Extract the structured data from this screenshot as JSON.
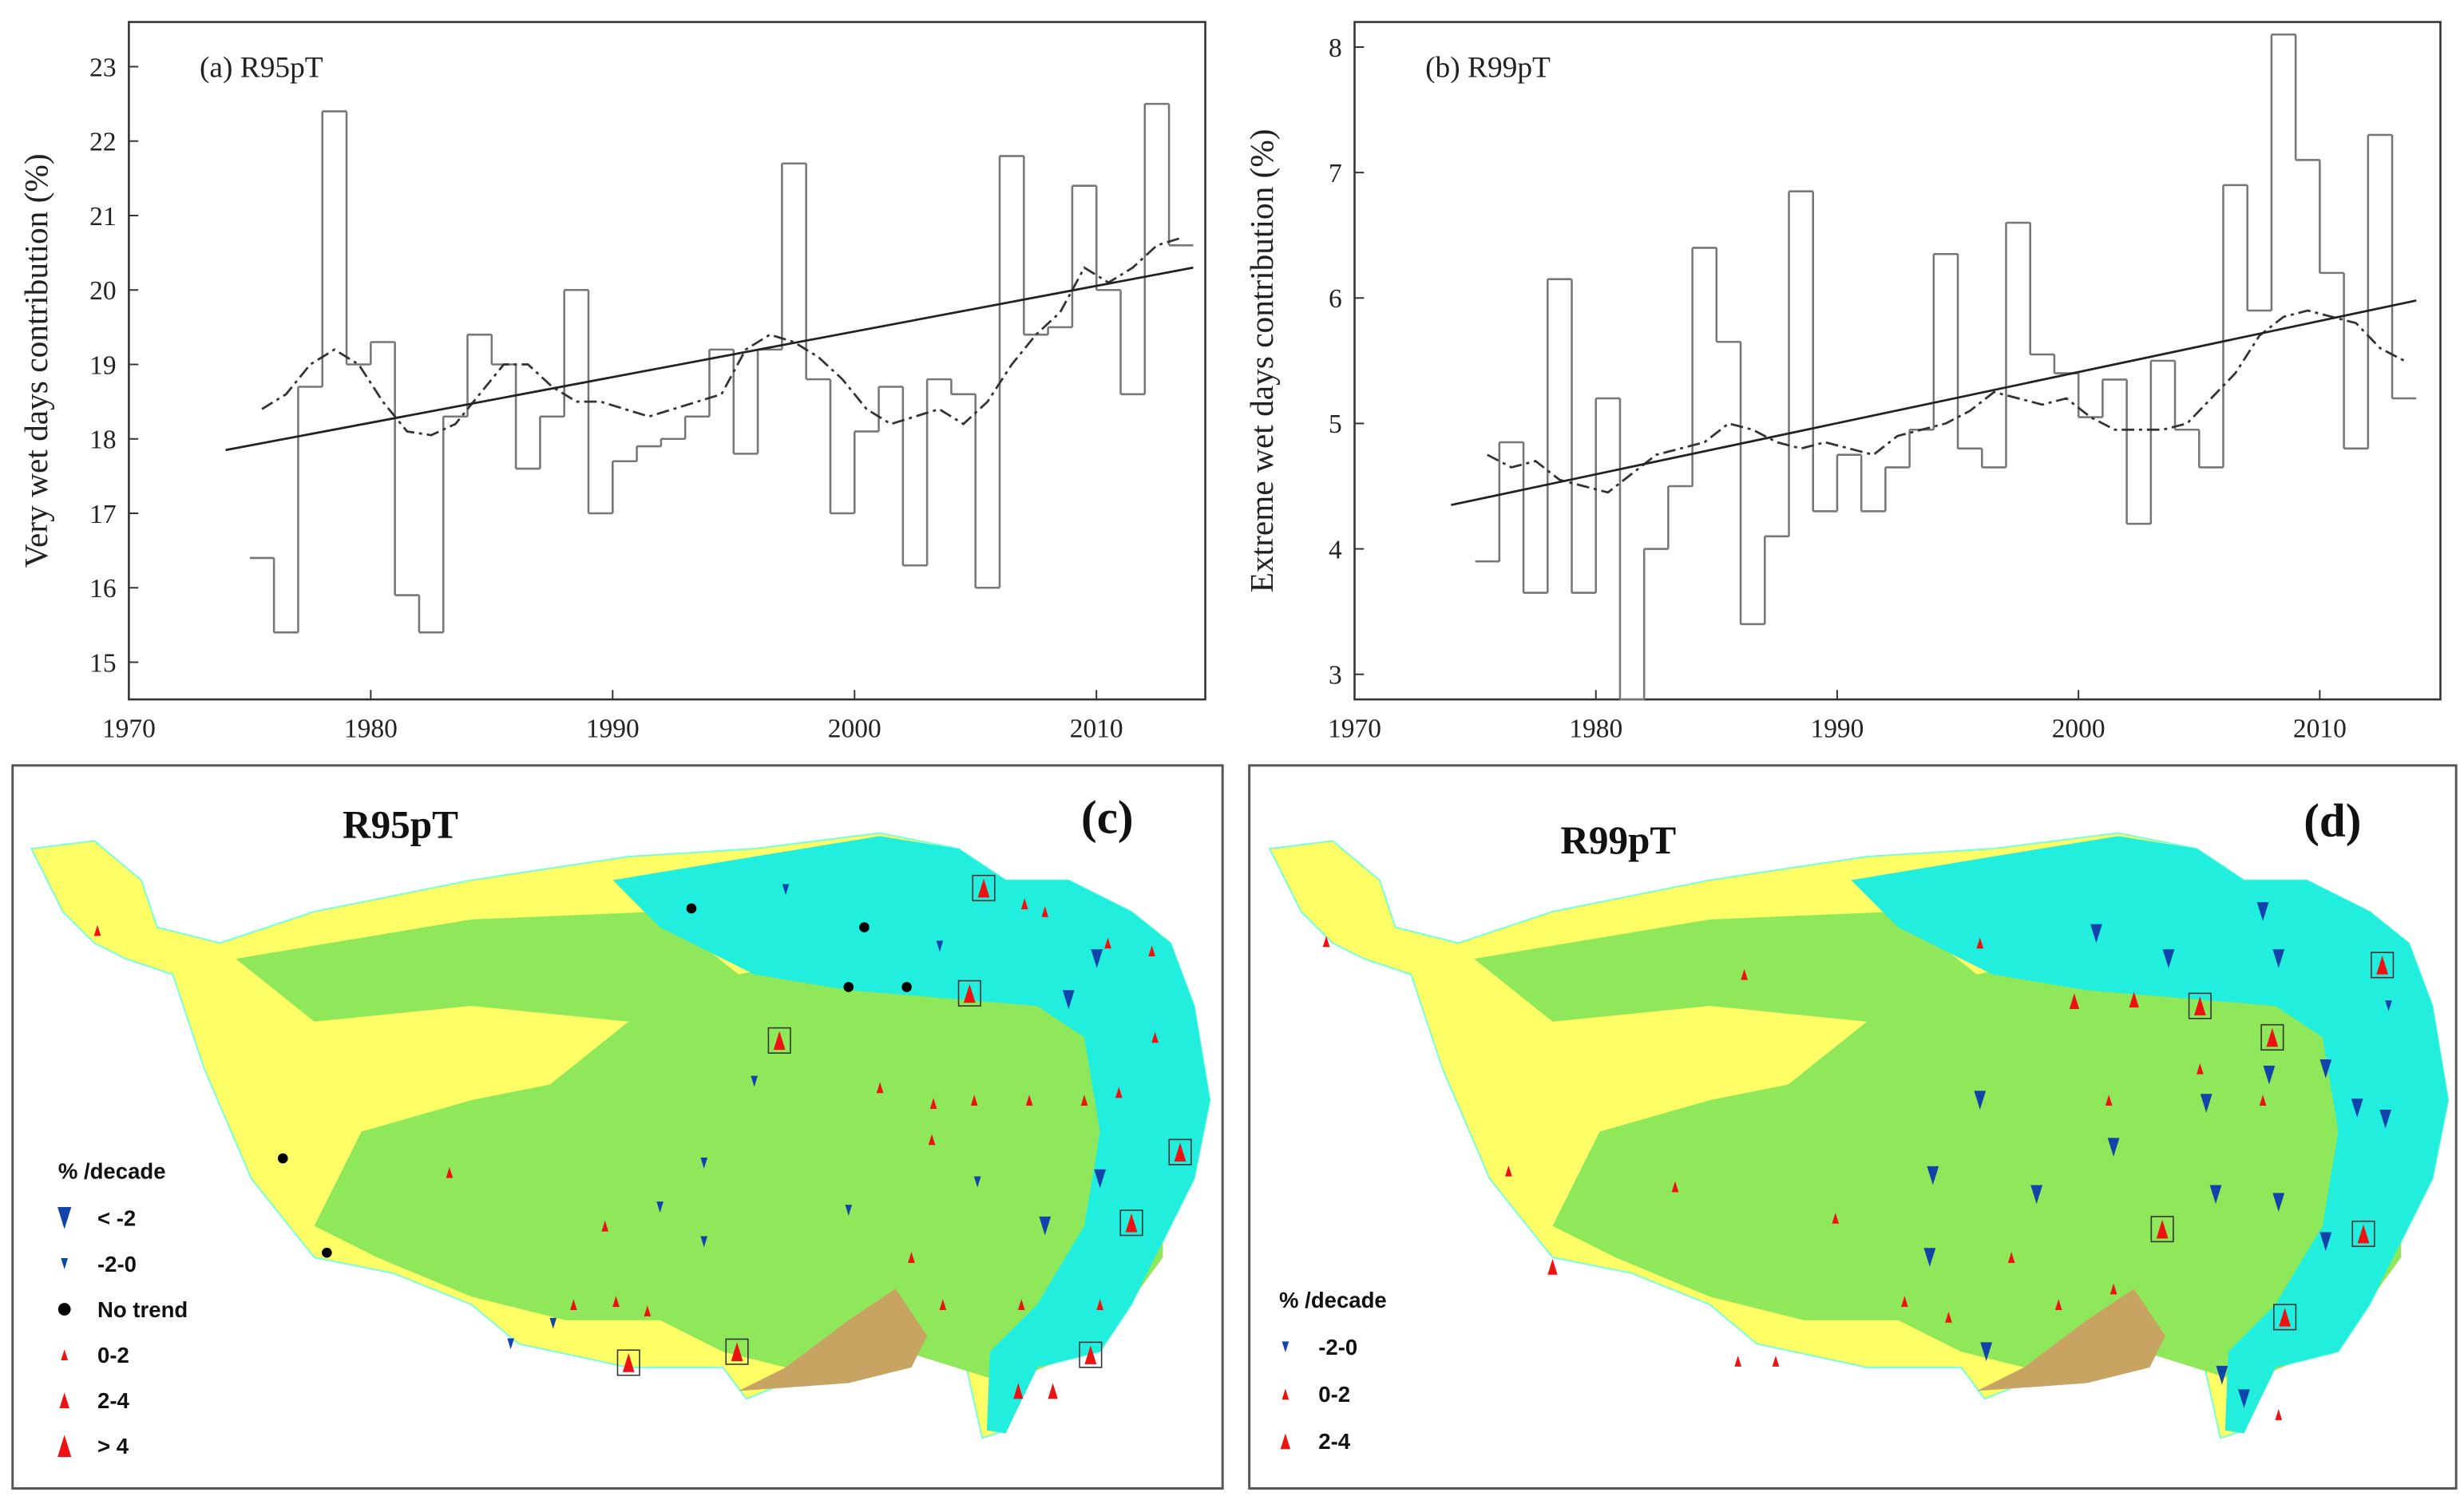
{
  "chart_data": [
    {
      "type": "step",
      "title": "(a) R95pT",
      "ylabel": "Very wet days contribution (%)",
      "x": [
        1975,
        1976,
        1977,
        1978,
        1979,
        1980,
        1981,
        1982,
        1983,
        1984,
        1985,
        1986,
        1987,
        1988,
        1989,
        1990,
        1991,
        1992,
        1993,
        1994,
        1995,
        1996,
        1997,
        1998,
        1999,
        2000,
        2001,
        2002,
        2003,
        2004,
        2005,
        2006,
        2007,
        2008,
        2009,
        2010,
        2011,
        2012,
        2013
      ],
      "series": [
        {
          "draw": "step",
          "color": "#777777",
          "values": [
            16.4,
            15.4,
            18.7,
            22.4,
            19.0,
            19.3,
            15.9,
            15.4,
            18.3,
            19.4,
            19.0,
            17.6,
            18.3,
            20.0,
            17.0,
            17.7,
            17.9,
            18.0,
            18.3,
            19.2,
            17.8,
            19.2,
            21.7,
            18.8,
            17.0,
            18.1,
            18.7,
            16.3,
            18.8,
            18.6,
            16.0,
            21.8,
            19.4,
            19.5,
            21.4,
            20.0,
            18.6,
            22.5,
            20.6
          ]
        },
        {
          "draw": "dashdot",
          "color": "#333333",
          "values": [
            18.4,
            18.6,
            19.0,
            19.2,
            19.0,
            18.5,
            18.1,
            18.05,
            18.2,
            18.6,
            19.0,
            19.0,
            18.7,
            18.5,
            18.5,
            18.4,
            18.3,
            18.4,
            18.5,
            18.6,
            19.2,
            19.4,
            19.3,
            19.1,
            18.8,
            18.4,
            18.2,
            18.3,
            18.4,
            18.2,
            18.5,
            19.0,
            19.4,
            19.7,
            20.3,
            20.1,
            20.3,
            20.6,
            20.7
          ]
        },
        {
          "draw": "line",
          "color": "#222222",
          "x": [
            1974,
            2014
          ],
          "values": [
            17.85,
            20.3
          ]
        }
      ],
      "xlim": [
        1970,
        2014.5
      ],
      "xticks": [
        1970,
        1980,
        1990,
        2000,
        2010
      ],
      "ylim": [
        14.5,
        23.6
      ],
      "yticks": [
        15,
        16,
        17,
        18,
        19,
        20,
        21,
        22,
        23
      ]
    },
    {
      "type": "step",
      "title": "(b) R99pT",
      "ylabel": "Extreme wet days contribution (%)",
      "x": [
        1975,
        1976,
        1977,
        1978,
        1979,
        1980,
        1981,
        1982,
        1983,
        1984,
        1985,
        1986,
        1987,
        1988,
        1989,
        1990,
        1991,
        1992,
        1993,
        1994,
        1995,
        1996,
        1997,
        1998,
        1999,
        2000,
        2001,
        2002,
        2003,
        2004,
        2005,
        2006,
        2007,
        2008,
        2009,
        2010,
        2011,
        2012,
        2013
      ],
      "series": [
        {
          "draw": "step",
          "color": "#777777",
          "values": [
            3.9,
            4.85,
            3.65,
            6.15,
            3.65,
            5.2,
            2.8,
            4.0,
            4.5,
            6.4,
            5.65,
            3.4,
            4.1,
            6.85,
            4.3,
            4.75,
            4.3,
            4.65,
            4.95,
            6.35,
            4.8,
            4.65,
            6.6,
            5.55,
            5.4,
            5.05,
            5.35,
            4.2,
            5.5,
            4.95,
            4.65,
            6.9,
            5.9,
            8.1,
            7.1,
            6.2,
            4.8,
            7.3,
            5.2
          ]
        },
        {
          "draw": "dashdot",
          "color": "#333333",
          "values": [
            4.75,
            4.65,
            4.7,
            4.55,
            4.5,
            4.45,
            4.6,
            4.75,
            4.8,
            4.85,
            5.0,
            4.95,
            4.85,
            4.8,
            4.85,
            4.8,
            4.75,
            4.9,
            4.95,
            5.0,
            5.1,
            5.25,
            5.2,
            5.15,
            5.2,
            5.05,
            4.95,
            4.95,
            4.95,
            5.0,
            5.2,
            5.4,
            5.7,
            5.85,
            5.9,
            5.85,
            5.8,
            5.6,
            5.5
          ]
        },
        {
          "draw": "line",
          "color": "#222222",
          "x": [
            1974,
            2014
          ],
          "values": [
            4.35,
            5.98
          ]
        }
      ],
      "xlim": [
        1970,
        2015
      ],
      "xticks": [
        1970,
        1980,
        1990,
        2000,
        2010
      ],
      "ylim": [
        2.8,
        8.2
      ],
      "yticks": [
        3,
        4,
        5,
        6,
        7,
        8
      ]
    }
  ],
  "maps": [
    {
      "title": "R95pT",
      "panel": "(c)",
      "legend_title": "% /decade",
      "legend": [
        "< -2",
        "-2-0",
        "No trend",
        "0-2",
        "2-4",
        "> 4"
      ]
    },
    {
      "title": "R99pT",
      "panel": "(d)",
      "legend_title": "% /decade",
      "legend": [
        "-2-0",
        "0-2",
        "2-4"
      ]
    }
  ]
}
